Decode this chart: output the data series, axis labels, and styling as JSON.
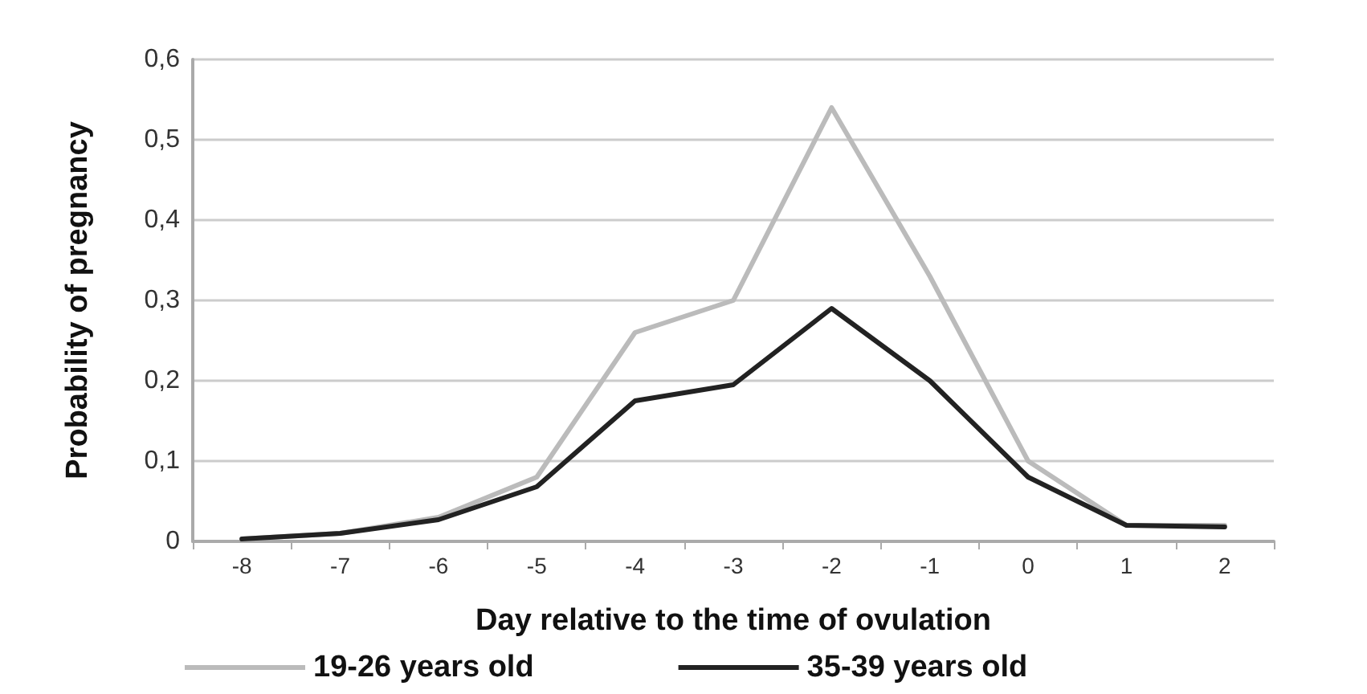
{
  "chart_data": {
    "type": "line",
    "xlabel": "Day relative to the time of ovulation",
    "ylabel": "Probability of pregnancy",
    "categories": [
      "-8",
      "-7",
      "-6",
      "-5",
      "-4",
      "-3",
      "-2",
      "-1",
      "0",
      "1",
      "2"
    ],
    "series": [
      {
        "name": "19-26 years old",
        "color": "#bbbbbb",
        "values": [
          0.003,
          0.01,
          0.03,
          0.08,
          0.26,
          0.3,
          0.54,
          0.33,
          0.1,
          0.02,
          0.02
        ]
      },
      {
        "name": "35-39 years old",
        "color": "#222222",
        "values": [
          0.003,
          0.01,
          0.027,
          0.068,
          0.175,
          0.195,
          0.29,
          0.2,
          0.08,
          0.02,
          0.018
        ]
      }
    ],
    "ylim": [
      0,
      0.6
    ],
    "yticks": [
      {
        "value": 0,
        "label": "0"
      },
      {
        "value": 0.1,
        "label": "0,1"
      },
      {
        "value": 0.2,
        "label": "0,2"
      },
      {
        "value": 0.3,
        "label": "0,3"
      },
      {
        "value": 0.4,
        "label": "0,4"
      },
      {
        "value": 0.5,
        "label": "0,5"
      },
      {
        "value": 0.6,
        "label": "0,6"
      }
    ],
    "grid": "y",
    "legend": "bottom",
    "marker": "none",
    "line_style": "solid"
  }
}
